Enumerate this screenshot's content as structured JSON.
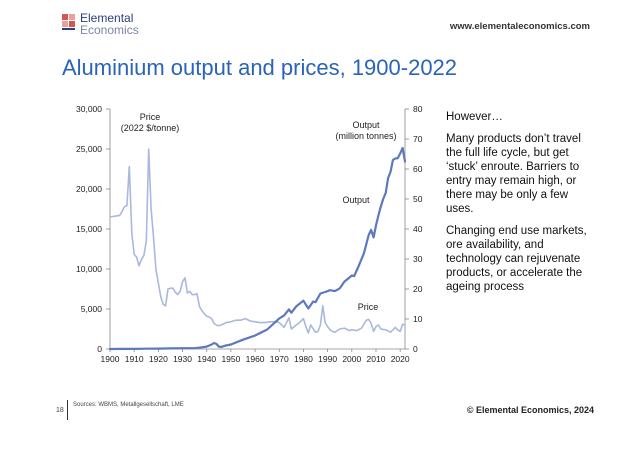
{
  "header": {
    "logo_line1": "Elemental",
    "logo_line2": "Economics",
    "website": "www.elementaleconomics.com",
    "title": "Aluminium output and prices, 1900-2022"
  },
  "side_text": {
    "heading": "However…",
    "paragraph1": "Many products don’t travel the full life cycle, but get ‘stuck’ enroute. Barriers to entry may remain high, or there may be only a few uses.",
    "paragraph2": "Changing end use markets, ore availability, and technology can rejuvenate products, or accelerate the ageing process"
  },
  "footer": {
    "page_number": "18",
    "sources": "Sources: WBMS, Metallgesellschaft, LME",
    "copyright": "© Elemental Economics, 2024"
  },
  "colors": {
    "title": "#2a63b8",
    "price_series": "#a9b8df",
    "output_series": "#5d78bd",
    "logo_red": "#d9534f"
  },
  "chart_data": {
    "type": "line",
    "x_ticks": [
      "1900",
      "1910",
      "1920",
      "1930",
      "1940",
      "1950",
      "1960",
      "1970",
      "1980",
      "1990",
      "2000",
      "2010",
      "2020"
    ],
    "xlim": [
      1900,
      2022
    ],
    "y_left": {
      "ticks": [
        "0",
        "5,000",
        "10,000",
        "15,000",
        "20,000",
        "25,000",
        "30,000"
      ],
      "lim": [
        0,
        30000
      ]
    },
    "y_right": {
      "ticks": [
        "0",
        "10",
        "20",
        "30",
        "40",
        "50",
        "60",
        "70",
        "80"
      ],
      "lim": [
        0,
        80
      ]
    },
    "annotations": {
      "price_axis_line1": "Price",
      "price_axis_line2": "(2022 $/tonne)",
      "output_axis_line1": "Output",
      "output_axis_line2": "(million tonnes)",
      "output_series_label": "Output",
      "price_series_label": "Price"
    },
    "grid": false,
    "series": [
      {
        "axis": "left",
        "x": [
          1900,
          1902,
          1904,
          1905,
          1906,
          1907,
          1908,
          1909,
          1910,
          1911,
          1912,
          1913,
          1914,
          1915,
          1916,
          1917,
          1918,
          1919,
          1920,
          1921,
          1922,
          1923,
          1924,
          1925,
          1926,
          1927,
          1928,
          1929,
          1930,
          1931,
          1932,
          1933,
          1934,
          1935,
          1936,
          1937,
          1938,
          1939,
          1940,
          1941,
          1942,
          1943,
          1944,
          1945,
          1946,
          1948,
          1950,
          1952,
          1954,
          1956,
          1958,
          1960,
          1962,
          1964,
          1966,
          1968,
          1970,
          1972,
          1973,
          1974,
          1975,
          1977,
          1978,
          1979,
          1980,
          1981,
          1982,
          1983,
          1985,
          1986,
          1987,
          1988,
          1989,
          1990,
          1991,
          1992,
          1993,
          1995,
          1997,
          1999,
          2000,
          2002,
          2004,
          2006,
          2007,
          2008,
          2009,
          2010,
          2011,
          2012,
          2014,
          2016,
          2018,
          2019,
          2020,
          2021,
          2022
        ],
        "values": [
          16500,
          16600,
          16700,
          17200,
          17800,
          17900,
          22800,
          14500,
          11800,
          11500,
          10400,
          11200,
          11700,
          13500,
          25000,
          17500,
          14000,
          10000,
          8200,
          6500,
          5600,
          5400,
          7500,
          7600,
          7600,
          7100,
          6800,
          7200,
          8400,
          8900,
          7000,
          7200,
          6800,
          6800,
          6900,
          5300,
          4800,
          4400,
          4100,
          4000,
          3800,
          3200,
          3000,
          2900,
          3000,
          3300,
          3400,
          3600,
          3600,
          3800,
          3500,
          3400,
          3300,
          3300,
          3400,
          3400,
          3300,
          2700,
          3300,
          3900,
          2500,
          3000,
          3200,
          3500,
          3800,
          2800,
          2000,
          3000,
          2100,
          2200,
          3000,
          5400,
          3300,
          2800,
          2400,
          2200,
          2100,
          2500,
          2600,
          2300,
          2400,
          2300,
          2600,
          3600,
          3700,
          3200,
          2200,
          2800,
          3000,
          2500,
          2400,
          2100,
          2700,
          2400,
          2200,
          3100,
          3000
        ]
      },
      {
        "axis": "right",
        "x": [
          1900,
          1905,
          1910,
          1915,
          1920,
          1925,
          1930,
          1935,
          1938,
          1940,
          1942,
          1943,
          1944,
          1945,
          1946,
          1948,
          1950,
          1955,
          1960,
          1965,
          1970,
          1972,
          1974,
          1975,
          1977,
          1980,
          1982,
          1984,
          1985,
          1987,
          1989,
          1991,
          1993,
          1995,
          1997,
          1999,
          2000,
          2001,
          2003,
          2005,
          2007,
          2008,
          2009,
          2010,
          2011,
          2012,
          2013,
          2014,
          2015,
          2016,
          2017,
          2018,
          2019,
          2020,
          2021,
          2022
        ],
        "values": [
          0.01,
          0.02,
          0.04,
          0.1,
          0.13,
          0.2,
          0.27,
          0.26,
          0.58,
          0.8,
          1.5,
          2.0,
          1.7,
          0.8,
          0.7,
          1.2,
          1.5,
          3.1,
          4.5,
          6.5,
          10.2,
          11.2,
          13.2,
          12.1,
          14.2,
          16.1,
          13.5,
          15.8,
          15.6,
          18.5,
          19.0,
          19.6,
          19.3,
          20.2,
          22.5,
          23.8,
          24.5,
          24.3,
          28.0,
          31.9,
          38.0,
          39.7,
          37.2,
          41.2,
          44.5,
          47.5,
          50.0,
          52.0,
          57.0,
          59.0,
          63.0,
          63.5,
          63.6,
          65.2,
          67.0,
          62.5
        ]
      }
    ]
  }
}
